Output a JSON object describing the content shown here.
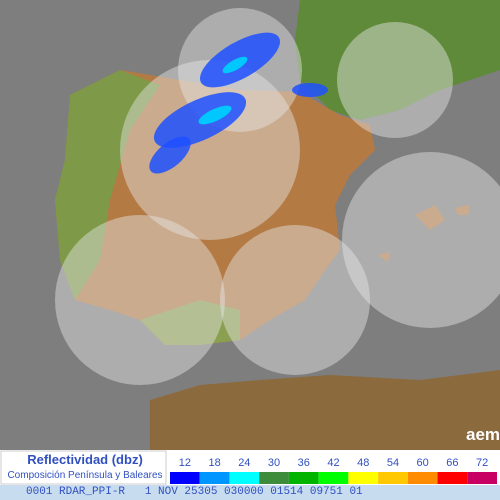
{
  "legend": {
    "title": "Reflectividad (dbz)",
    "subtitle": "Composición Península y Baleares",
    "entries": [
      {
        "value": 12,
        "color": "#0000ff"
      },
      {
        "value": 18,
        "color": "#0096ff"
      },
      {
        "value": 24,
        "color": "#00ffff"
      },
      {
        "value": 30,
        "color": "#3c8c3c"
      },
      {
        "value": 36,
        "color": "#00b400"
      },
      {
        "value": 42,
        "color": "#00ff00"
      },
      {
        "value": 48,
        "color": "#ffff00"
      },
      {
        "value": 54,
        "color": "#ffc800"
      },
      {
        "value": 60,
        "color": "#ff8c00"
      },
      {
        "value": 66,
        "color": "#ff0000"
      },
      {
        "value": 72,
        "color": "#c80064"
      }
    ]
  },
  "logo": "aemet",
  "status_bar": "0001 RDAR_PPI-R   1 NOV 25305 030000 01514 09751 01"
}
